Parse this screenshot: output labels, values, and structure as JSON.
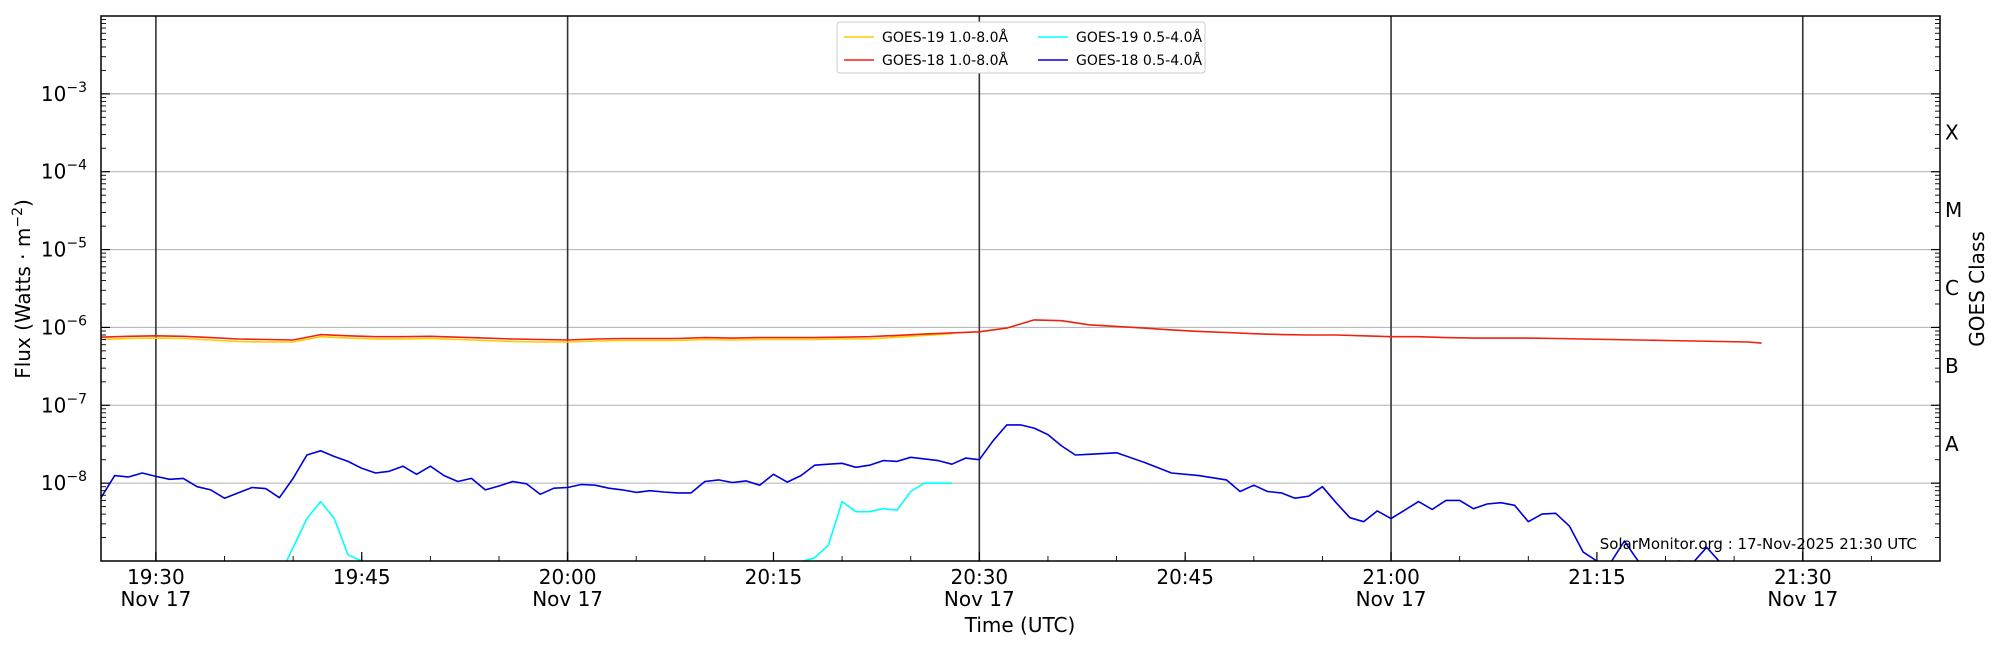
{
  "chart_data": {
    "type": "line",
    "title": "",
    "xlabel": "Time (UTC)",
    "ylabel": "Flux (Watts · m",
    "ylabel_exp": "−2",
    "ylabel_close": ")",
    "right_label": "GOES Class",
    "yscale": "log",
    "ylim": [
      1e-09,
      0.01
    ],
    "xlim": [
      "19:26",
      "21:40"
    ],
    "grid": "horizontal at decades",
    "legend_position": "top-center",
    "x_ticks": [
      {
        "time": "19:30",
        "label": "19:30",
        "date": "Nov 17"
      },
      {
        "time": "19:45",
        "label": "19:45",
        "date": ""
      },
      {
        "time": "20:00",
        "label": "20:00",
        "date": "Nov 17"
      },
      {
        "time": "20:15",
        "label": "20:15",
        "date": ""
      },
      {
        "time": "20:30",
        "label": "20:30",
        "date": "Nov 17"
      },
      {
        "time": "20:45",
        "label": "20:45",
        "date": ""
      },
      {
        "time": "21:00",
        "label": "21:00",
        "date": "Nov 17"
      },
      {
        "time": "21:15",
        "label": "21:15",
        "date": ""
      },
      {
        "time": "21:30",
        "label": "21:30",
        "date": "Nov 17"
      }
    ],
    "vertical_lines": [
      "19:30",
      "20:00",
      "20:30",
      "21:00",
      "21:30"
    ],
    "y_ticks": [
      {
        "value": 1e-08,
        "base": "10",
        "exp": "−8"
      },
      {
        "value": 1e-07,
        "base": "10",
        "exp": "−7"
      },
      {
        "value": 1e-06,
        "base": "10",
        "exp": "−6"
      },
      {
        "value": 1e-05,
        "base": "10",
        "exp": "−5"
      },
      {
        "value": 0.0001,
        "base": "10",
        "exp": "−4"
      },
      {
        "value": 0.001,
        "base": "10",
        "exp": "−3"
      }
    ],
    "goes_classes": [
      {
        "label": "X",
        "value": 0.00032
      },
      {
        "label": "M",
        "value": 3.2e-05
      },
      {
        "label": "C",
        "value": 3.2e-06
      },
      {
        "label": "B",
        "value": 3.2e-07
      },
      {
        "label": "A",
        "value": 3.2e-08
      }
    ],
    "credit": "SolarMonitor.org : 17-Nov-2025 21:30 UTC",
    "series": [
      {
        "name": "GOES-19 1.0-8.0Å",
        "color": "#ffcc00",
        "x": [
          "19:26",
          "19:28",
          "19:30",
          "19:32",
          "19:34",
          "19:36",
          "19:38",
          "19:40",
          "19:42",
          "19:44",
          "19:46",
          "19:48",
          "19:50",
          "19:52",
          "19:54",
          "19:56",
          "19:58",
          "20:00",
          "20:02",
          "20:04",
          "20:06",
          "20:08",
          "20:10",
          "20:12",
          "20:14",
          "20:16",
          "20:18",
          "20:20",
          "20:22",
          "20:24",
          "20:26",
          "20:28"
        ],
        "values": [
          7e-07,
          7.2e-07,
          7.3e-07,
          7.2e-07,
          6.9e-07,
          6.6e-07,
          6.5e-07,
          6.5e-07,
          7.6e-07,
          7.3e-07,
          7.1e-07,
          7.1e-07,
          7.2e-07,
          7e-07,
          6.8e-07,
          6.6e-07,
          6.5e-07,
          6.5e-07,
          6.7e-07,
          6.8e-07,
          6.8e-07,
          6.8e-07,
          7e-07,
          6.9e-07,
          7e-07,
          7e-07,
          7e-07,
          7.1e-07,
          7.1e-07,
          7.5e-07,
          7.9e-07,
          8.3e-07
        ]
      },
      {
        "name": "GOES-18 1.0-8.0Å",
        "color": "#ee2211",
        "x": [
          "19:26",
          "19:28",
          "19:30",
          "19:32",
          "19:34",
          "19:36",
          "19:38",
          "19:40",
          "19:42",
          "19:44",
          "19:46",
          "19:48",
          "19:50",
          "19:52",
          "19:54",
          "19:56",
          "19:58",
          "20:00",
          "20:02",
          "20:04",
          "20:06",
          "20:08",
          "20:10",
          "20:12",
          "20:14",
          "20:16",
          "20:18",
          "20:20",
          "20:22",
          "20:24",
          "20:26",
          "20:28",
          "20:30",
          "20:32",
          "20:34",
          "20:36",
          "20:38",
          "20:40",
          "20:42",
          "20:44",
          "20:46",
          "20:48",
          "20:50",
          "20:52",
          "20:54",
          "20:56",
          "20:58",
          "21:00",
          "21:02",
          "21:04",
          "21:06",
          "21:08",
          "21:10",
          "21:12",
          "21:14",
          "21:16",
          "21:18",
          "21:20",
          "21:22",
          "21:24",
          "21:26",
          "21:27"
        ],
        "values": [
          7.5e-07,
          7.7e-07,
          7.8e-07,
          7.7e-07,
          7.4e-07,
          7.1e-07,
          7e-07,
          6.9e-07,
          8.1e-07,
          7.8e-07,
          7.6e-07,
          7.6e-07,
          7.7e-07,
          7.5e-07,
          7.3e-07,
          7.1e-07,
          7e-07,
          6.9e-07,
          7.1e-07,
          7.2e-07,
          7.2e-07,
          7.2e-07,
          7.4e-07,
          7.3e-07,
          7.4e-07,
          7.4e-07,
          7.4e-07,
          7.5e-07,
          7.6e-07,
          7.9e-07,
          8.2e-07,
          8.5e-07,
          8.8e-07,
          9.8e-07,
          1.25e-06,
          1.22e-06,
          1.08e-06,
          1.03e-06,
          9.8e-07,
          9.3e-07,
          8.9e-07,
          8.6e-07,
          8.3e-07,
          8.1e-07,
          8e-07,
          8e-07,
          7.8e-07,
          7.6e-07,
          7.6e-07,
          7.4e-07,
          7.3e-07,
          7.3e-07,
          7.3e-07,
          7.2e-07,
          7.1e-07,
          7e-07,
          6.9e-07,
          6.8e-07,
          6.7e-07,
          6.6e-07,
          6.5e-07,
          6.3e-07
        ]
      },
      {
        "name": "GOES-19 0.5-4.0Å",
        "color": "#00ffff",
        "x": [
          "19:39.5",
          "19:41",
          "19:42",
          "19:43",
          "19:44",
          "19:45",
          "19:45.5",
          "20:17",
          "20:18",
          "20:19",
          "20:20",
          "20:21",
          "20:22",
          "20:23",
          "20:24",
          "20:25",
          "20:26",
          "20:27",
          "20:28"
        ],
        "values": [
          9.8e-10,
          3.5e-09,
          5.8e-09,
          3.5e-09,
          1.2e-09,
          1e-09,
          9.8e-10,
          9.8e-10,
          1.1e-09,
          1.6e-09,
          5.8e-09,
          4.3e-09,
          4.3e-09,
          4.7e-09,
          4.5e-09,
          7.8e-09,
          1e-08,
          1e-08,
          1e-08
        ]
      },
      {
        "name": "GOES-18 0.5-4.0Å",
        "color": "#0000dd",
        "x": [
          "19:26",
          "19:27",
          "19:28",
          "19:29",
          "19:30",
          "19:31",
          "19:32",
          "19:33",
          "19:34",
          "19:35",
          "19:36",
          "19:37",
          "19:38",
          "19:39",
          "19:40",
          "19:41",
          "19:42",
          "19:43",
          "19:44",
          "19:45",
          "19:46",
          "19:47",
          "19:48",
          "19:49",
          "19:50",
          "19:51",
          "19:52",
          "19:53",
          "19:54",
          "19:55",
          "19:56",
          "19:57",
          "19:58",
          "19:59",
          "20:00",
          "20:01",
          "20:02",
          "20:03",
          "20:04",
          "20:05",
          "20:06",
          "20:07",
          "20:08",
          "20:09",
          "20:10",
          "20:11",
          "20:12",
          "20:13",
          "20:14",
          "20:15",
          "20:16",
          "20:17",
          "20:18",
          "20:19",
          "20:20",
          "20:21",
          "20:22",
          "20:23",
          "20:24",
          "20:25",
          "20:26",
          "20:27",
          "20:28",
          "20:29",
          "20:30",
          "20:31",
          "20:32",
          "20:33",
          "20:34",
          "20:35",
          "20:36",
          "20:37",
          "20:38",
          "20:40",
          "20:42",
          "20:44",
          "20:46",
          "20:48",
          "20:49",
          "20:50",
          "20:51",
          "20:52",
          "20:53",
          "20:54",
          "20:55",
          "20:56",
          "20:57",
          "20:58",
          "20:59",
          "21:00",
          "21:01",
          "21:02",
          "21:03",
          "21:04",
          "21:05",
          "21:06",
          "21:07",
          "21:08",
          "21:09",
          "21:10",
          "21:11",
          "21:12",
          "21:13",
          "21:14",
          "21:15",
          "21:16",
          "21:17",
          "21:18",
          "21:19",
          "21:20",
          "21:21",
          "21:22",
          "21:23",
          "21:24",
          "21:25",
          "21:26"
        ],
        "values": [
          6.5e-09,
          1.25e-08,
          1.2e-08,
          1.35e-08,
          1.22e-08,
          1.12e-08,
          1.15e-08,
          9e-09,
          8.2e-09,
          6.4e-09,
          7.5e-09,
          8.8e-09,
          8.5e-09,
          6.5e-09,
          1.15e-08,
          2.3e-08,
          2.6e-08,
          2.2e-08,
          1.9e-08,
          1.55e-08,
          1.35e-08,
          1.42e-08,
          1.65e-08,
          1.3e-08,
          1.65e-08,
          1.25e-08,
          1.05e-08,
          1.15e-08,
          8.2e-09,
          9.2e-09,
          1.05e-08,
          9.8e-09,
          7.2e-09,
          8.6e-09,
          8.8e-09,
          9.6e-09,
          9.4e-09,
          8.6e-09,
          8.2e-09,
          7.6e-09,
          8e-09,
          7.7e-09,
          7.5e-09,
          7.5e-09,
          1.05e-08,
          1.1e-08,
          1.02e-08,
          1.07e-08,
          9.4e-09,
          1.3e-08,
          1.03e-08,
          1.25e-08,
          1.7e-08,
          1.75e-08,
          1.8e-08,
          1.6e-08,
          1.7e-08,
          1.95e-08,
          1.9e-08,
          2.15e-08,
          2.05e-08,
          1.95e-08,
          1.75e-08,
          2.1e-08,
          2e-08,
          3.5e-08,
          5.6e-08,
          5.6e-08,
          5.1e-08,
          4.2e-08,
          3e-08,
          2.3e-08,
          2.35e-08,
          2.45e-08,
          1.85e-08,
          1.35e-08,
          1.25e-08,
          1.1e-08,
          7.8e-09,
          9.4e-09,
          7.8e-09,
          7.5e-09,
          6.4e-09,
          6.8e-09,
          9e-09,
          5.6e-09,
          3.6e-09,
          3.2e-09,
          4.4e-09,
          3.5e-09,
          4.5e-09,
          5.8e-09,
          4.6e-09,
          6e-09,
          6e-09,
          4.7e-09,
          5.4e-09,
          5.6e-09,
          5.2e-09,
          3.2e-09,
          4e-09,
          4.1e-09,
          2.8e-09,
          1.3e-09,
          1e-09,
          9.5e-10,
          1.8e-09,
          1e-09,
          9.5e-10,
          9.5e-10,
          1e-09,
          9.5e-10,
          1.5e-09,
          9.5e-10,
          9.5e-10,
          9.5e-10
        ]
      }
    ]
  }
}
